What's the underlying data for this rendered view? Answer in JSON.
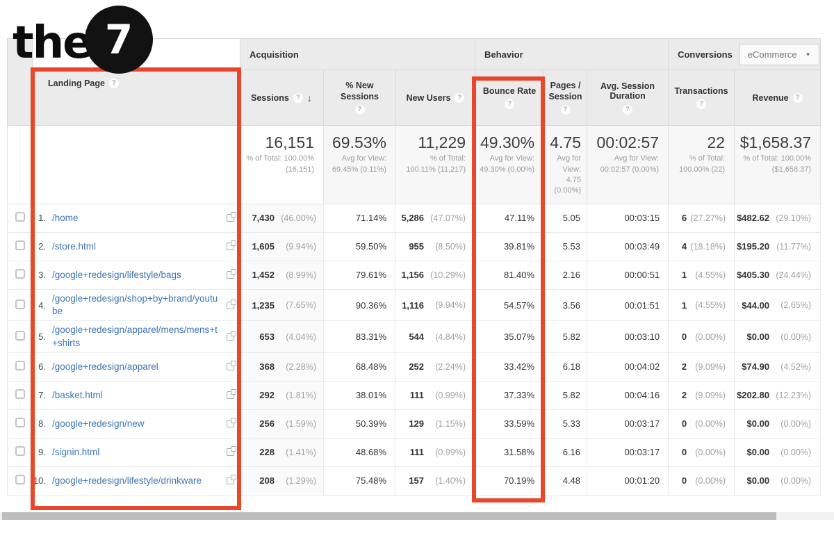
{
  "logo": {
    "word": "the",
    "digit": "7"
  },
  "colors": {
    "highlight_red": "#e8472c",
    "link_blue": "#3d76b5",
    "header_bg": "#ebebeb"
  },
  "controls": {
    "help": "?",
    "sort_arrow": "↓",
    "dropdown_caret": "▼"
  },
  "table": {
    "groups": {
      "acquisition": "Acquisition",
      "behavior": "Behavior",
      "conversions": "Conversions",
      "conversions_selector": "eCommerce"
    },
    "columns": {
      "landing_page": "Landing Page",
      "sessions": "Sessions",
      "pct_new_sessions": "% New Sessions",
      "new_users": "New Users",
      "bounce_rate": "Bounce Rate",
      "pages_session": "Pages / Session",
      "avg_session_duration": "Avg. Session Duration",
      "transactions": "Transactions",
      "revenue": "Revenue"
    },
    "summary": {
      "sessions": {
        "value": "16,151",
        "sub": "% of Total: 100.00% (16,151)"
      },
      "pct_new_sessions": {
        "value": "69.53%",
        "sub": "Avg for View: 69.45% (0.11%)"
      },
      "new_users": {
        "value": "11,229",
        "sub": "% of Total: 100.11% (11,217)"
      },
      "bounce_rate": {
        "value": "49.30%",
        "sub": "Avg for View: 49.30% (0.00%)"
      },
      "pages_session": {
        "value": "4.75",
        "sub": "Avg for View: 4.75 (0.00%)"
      },
      "avg_session_duration": {
        "value": "00:02:57",
        "sub": "Avg for View: 00:02:57 (0.00%)"
      },
      "transactions": {
        "value": "22",
        "sub": "% of Total: 100.00% (22)"
      },
      "revenue": {
        "value": "$1,658.37",
        "sub": "% of Total: 100.00% ($1,658.37)"
      }
    },
    "rows": [
      {
        "index": "1.",
        "page": "/home",
        "sessions": "7,430",
        "sessions_pct": "(46.00%)",
        "new_sessions": "71.14%",
        "new_users": "5,286",
        "new_users_pct": "(47.07%)",
        "bounce_rate": "47.11%",
        "pages_per_session": "5.05",
        "avg_duration": "00:03:15",
        "transactions": "6",
        "transactions_pct": "(27.27%)",
        "revenue": "$482.62",
        "revenue_pct": "(29.10%)"
      },
      {
        "index": "2.",
        "page": "/store.html",
        "sessions": "1,605",
        "sessions_pct": "(9.94%)",
        "new_sessions": "59.50%",
        "new_users": "955",
        "new_users_pct": "(8.50%)",
        "bounce_rate": "39.81%",
        "pages_per_session": "5.53",
        "avg_duration": "00:03:49",
        "transactions": "4",
        "transactions_pct": "(18.18%)",
        "revenue": "$195.20",
        "revenue_pct": "(11.77%)"
      },
      {
        "index": "3.",
        "page": "/google+redesign/lifestyle/bags",
        "sessions": "1,452",
        "sessions_pct": "(8.99%)",
        "new_sessions": "79.61%",
        "new_users": "1,156",
        "new_users_pct": "(10.29%)",
        "bounce_rate": "81.40%",
        "pages_per_session": "2.16",
        "avg_duration": "00:00:51",
        "transactions": "1",
        "transactions_pct": "(4.55%)",
        "revenue": "$405.30",
        "revenue_pct": "(24.44%)"
      },
      {
        "index": "4.",
        "page": "/google+redesign/shop+by+brand/youtube",
        "sessions": "1,235",
        "sessions_pct": "(7.65%)",
        "new_sessions": "90.36%",
        "new_users": "1,116",
        "new_users_pct": "(9.94%)",
        "bounce_rate": "54.57%",
        "pages_per_session": "3.56",
        "avg_duration": "00:01:51",
        "transactions": "1",
        "transactions_pct": "(4.55%)",
        "revenue": "$44.00",
        "revenue_pct": "(2.65%)"
      },
      {
        "index": "5.",
        "page": "/google+redesign/apparel/mens/mens+t+shirts",
        "sessions": "653",
        "sessions_pct": "(4.04%)",
        "new_sessions": "83.31%",
        "new_users": "544",
        "new_users_pct": "(4.84%)",
        "bounce_rate": "35.07%",
        "pages_per_session": "5.82",
        "avg_duration": "00:03:10",
        "transactions": "0",
        "transactions_pct": "(0.00%)",
        "revenue": "$0.00",
        "revenue_pct": "(0.00%)"
      },
      {
        "index": "6.",
        "page": "/google+redesign/apparel",
        "sessions": "368",
        "sessions_pct": "(2.28%)",
        "new_sessions": "68.48%",
        "new_users": "252",
        "new_users_pct": "(2.24%)",
        "bounce_rate": "33.42%",
        "pages_per_session": "6.18",
        "avg_duration": "00:04:02",
        "transactions": "2",
        "transactions_pct": "(9.09%)",
        "revenue": "$74.90",
        "revenue_pct": "(4.52%)"
      },
      {
        "index": "7.",
        "page": "/basket.html",
        "sessions": "292",
        "sessions_pct": "(1.81%)",
        "new_sessions": "38.01%",
        "new_users": "111",
        "new_users_pct": "(0.99%)",
        "bounce_rate": "37.33%",
        "pages_per_session": "5.82",
        "avg_duration": "00:04:16",
        "transactions": "2",
        "transactions_pct": "(9.09%)",
        "revenue": "$202.80",
        "revenue_pct": "(12.23%)"
      },
      {
        "index": "8.",
        "page": "/google+redesign/new",
        "sessions": "256",
        "sessions_pct": "(1.59%)",
        "new_sessions": "50.39%",
        "new_users": "129",
        "new_users_pct": "(1.15%)",
        "bounce_rate": "33.59%",
        "pages_per_session": "5.33",
        "avg_duration": "00:03:17",
        "transactions": "0",
        "transactions_pct": "(0.00%)",
        "revenue": "$0.00",
        "revenue_pct": "(0.00%)"
      },
      {
        "index": "9.",
        "page": "/signin.html",
        "sessions": "228",
        "sessions_pct": "(1.41%)",
        "new_sessions": "48.68%",
        "new_users": "111",
        "new_users_pct": "(0.99%)",
        "bounce_rate": "31.58%",
        "pages_per_session": "6.16",
        "avg_duration": "00:03:17",
        "transactions": "0",
        "transactions_pct": "(0.00%)",
        "revenue": "$0.00",
        "revenue_pct": "(0.00%)"
      },
      {
        "index": "10.",
        "page": "/google+redesign/lifestyle/drinkware",
        "sessions": "208",
        "sessions_pct": "(1.29%)",
        "new_sessions": "75.48%",
        "new_users": "157",
        "new_users_pct": "(1.40%)",
        "bounce_rate": "70.19%",
        "pages_per_session": "4.48",
        "avg_duration": "00:01:20",
        "transactions": "0",
        "transactions_pct": "(0.00%)",
        "revenue": "$0.00",
        "revenue_pct": "(0.00%)"
      }
    ]
  }
}
